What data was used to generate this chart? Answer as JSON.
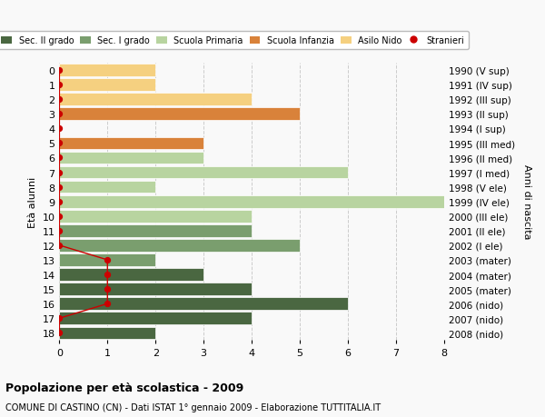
{
  "ages": [
    18,
    17,
    16,
    15,
    14,
    13,
    12,
    11,
    10,
    9,
    8,
    7,
    6,
    5,
    4,
    3,
    2,
    1,
    0
  ],
  "years": [
    "1990 (V sup)",
    "1991 (IV sup)",
    "1992 (III sup)",
    "1993 (II sup)",
    "1994 (I sup)",
    "1995 (III med)",
    "1996 (II med)",
    "1997 (I med)",
    "1998 (V ele)",
    "1999 (IV ele)",
    "2000 (III ele)",
    "2001 (II ele)",
    "2002 (I ele)",
    "2003 (mater)",
    "2004 (mater)",
    "2005 (mater)",
    "2006 (nido)",
    "2007 (nido)",
    "2008 (nido)"
  ],
  "bar_values": [
    2,
    4,
    6,
    4,
    3,
    2,
    5,
    4,
    4,
    8,
    2,
    6,
    3,
    3,
    0,
    5,
    4,
    2,
    2
  ],
  "bar_colors": [
    "#4a6741",
    "#4a6741",
    "#4a6741",
    "#4a6741",
    "#4a6741",
    "#7a9e6e",
    "#7a9e6e",
    "#7a9e6e",
    "#b8d4a0",
    "#b8d4a0",
    "#b8d4a0",
    "#b8d4a0",
    "#b8d4a0",
    "#d9823a",
    "#d9823a",
    "#d9823a",
    "#f5d080",
    "#f5d080",
    "#f5d080"
  ],
  "stranieri_x": [
    0,
    0,
    1,
    1,
    1,
    1,
    0,
    0,
    0,
    0,
    0,
    0,
    0,
    0,
    0,
    0,
    0,
    0,
    0
  ],
  "color_sec2": "#4a6741",
  "color_sec1": "#7a9e6e",
  "color_primaria": "#b8d4a0",
  "color_infanzia": "#d9823a",
  "color_nido": "#f5d080",
  "color_stranieri": "#cc0000",
  "title_bold": "Popolazione per età scolastica - 2009",
  "title_sub": "COMUNE DI CASTINO (CN) - Dati ISTAT 1° gennaio 2009 - Elaborazione TUTTITALIA.IT",
  "ylabel": "Età alunni",
  "ylabel_right": "Anni di nascita",
  "xlim": [
    0,
    8
  ],
  "background_color": "#f9f9f9",
  "grid_color": "#cccccc",
  "legend_labels": [
    "Sec. II grado",
    "Sec. I grado",
    "Scuola Primaria",
    "Scuola Infanzia",
    "Asilo Nido",
    "Stranieri"
  ]
}
